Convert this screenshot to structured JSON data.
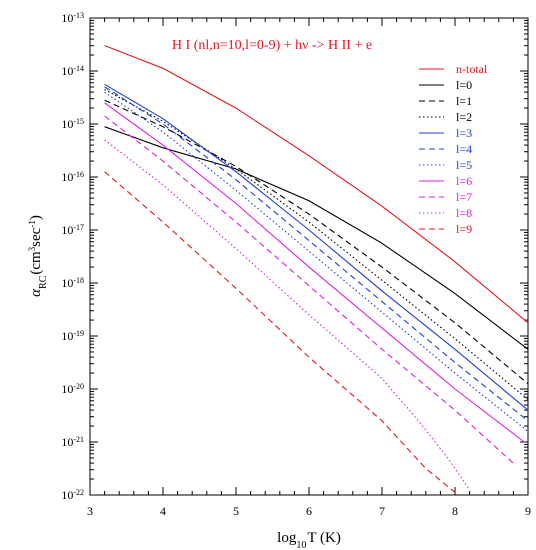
{
  "chart_data": {
    "type": "line",
    "title": "H I (nl,n=10,l=0-9) + hν -> H II + e",
    "title_color": "#e8141c",
    "xlabel": {
      "base": "log",
      "sub": "10",
      "rest": "T (K)"
    },
    "ylabel": {
      "base": "α",
      "sub": "RC",
      "rest1": "(cm",
      "sup1": "3",
      "rest2": "sec",
      "sup2": "-1",
      "rest3": ")"
    },
    "xlim": [
      3,
      9
    ],
    "ylim_log10": [
      -22,
      -13
    ],
    "y_scale": "log",
    "x_ticks": [
      {
        "v": 3,
        "label": "3"
      },
      {
        "v": 4,
        "label": "4"
      },
      {
        "v": 5,
        "label": "5"
      },
      {
        "v": 6,
        "label": "6"
      },
      {
        "v": 7,
        "label": "7"
      },
      {
        "v": 8,
        "label": "8"
      },
      {
        "v": 9,
        "label": "9"
      }
    ],
    "y_ticks": [
      {
        "e": -13,
        "label": "-13"
      },
      {
        "e": -14,
        "label": "-14"
      },
      {
        "e": -15,
        "label": "-15"
      },
      {
        "e": -16,
        "label": "-16"
      },
      {
        "e": -17,
        "label": "-17"
      },
      {
        "e": -18,
        "label": "-18"
      },
      {
        "e": -19,
        "label": "-19"
      },
      {
        "e": -20,
        "label": "-20"
      },
      {
        "e": -21,
        "label": "-21"
      },
      {
        "e": -22,
        "label": "-22"
      }
    ],
    "y_tick_base": "10",
    "legend_position": "top-right",
    "series": [
      {
        "name": "n-total",
        "color": "#e8141c",
        "dash": "solid",
        "points": [
          [
            3.2,
            -13.52
          ],
          [
            4.0,
            -13.95
          ],
          [
            5.0,
            -14.7
          ],
          [
            6.0,
            -15.6
          ],
          [
            7.0,
            -16.55
          ],
          [
            8.0,
            -17.6
          ],
          [
            9.0,
            -18.75
          ]
        ]
      },
      {
        "name": "l=0",
        "color": "#000000",
        "dash": "solid",
        "points": [
          [
            3.2,
            -15.05
          ],
          [
            4.0,
            -15.45
          ],
          [
            5.0,
            -15.85
          ],
          [
            6.0,
            -16.45
          ],
          [
            7.0,
            -17.25
          ],
          [
            8.0,
            -18.2
          ],
          [
            9.0,
            -19.25
          ]
        ]
      },
      {
        "name": "l=1",
        "color": "#000000",
        "dash": "dashed",
        "points": [
          [
            3.2,
            -14.55
          ],
          [
            4.0,
            -15.05
          ],
          [
            5.0,
            -15.8
          ],
          [
            6.0,
            -16.7
          ],
          [
            7.0,
            -17.7
          ],
          [
            8.0,
            -18.75
          ],
          [
            9.0,
            -19.9
          ]
        ]
      },
      {
        "name": "l=2",
        "color": "#000000",
        "dash": "dotted",
        "points": [
          [
            3.2,
            -14.35
          ],
          [
            4.0,
            -14.95
          ],
          [
            5.0,
            -15.85
          ],
          [
            6.0,
            -16.85
          ],
          [
            7.0,
            -17.95
          ],
          [
            8.0,
            -19.05
          ],
          [
            9.0,
            -20.2
          ]
        ]
      },
      {
        "name": "l=3",
        "color": "#1f3cd8",
        "dash": "solid",
        "points": [
          [
            3.2,
            -14.25
          ],
          [
            4.0,
            -14.9
          ],
          [
            5.0,
            -15.9
          ],
          [
            6.0,
            -17.0
          ],
          [
            7.0,
            -18.15
          ],
          [
            8.0,
            -19.25
          ],
          [
            9.0,
            -20.4
          ]
        ]
      },
      {
        "name": "l=4",
        "color": "#1f3cd8",
        "dash": "dashed",
        "points": [
          [
            3.2,
            -14.3
          ],
          [
            4.0,
            -15.0
          ],
          [
            5.0,
            -16.05
          ],
          [
            6.0,
            -17.2
          ],
          [
            7.0,
            -18.35
          ],
          [
            8.0,
            -19.5
          ],
          [
            9.0,
            -20.6
          ]
        ]
      },
      {
        "name": "l=5",
        "color": "#1f3cd8",
        "dash": "dotted",
        "points": [
          [
            3.2,
            -14.4
          ],
          [
            4.0,
            -15.15
          ],
          [
            5.0,
            -16.25
          ],
          [
            6.0,
            -17.4
          ],
          [
            7.0,
            -18.55
          ],
          [
            8.0,
            -19.7
          ],
          [
            9.0,
            -20.8
          ]
        ]
      },
      {
        "name": "l=6",
        "color": "#e01ee0",
        "dash": "solid",
        "points": [
          [
            3.2,
            -14.6
          ],
          [
            4.0,
            -15.4
          ],
          [
            5.0,
            -16.5
          ],
          [
            6.0,
            -17.7
          ],
          [
            7.0,
            -18.85
          ],
          [
            8.0,
            -20.0
          ],
          [
            8.95,
            -21.0
          ]
        ]
      },
      {
        "name": "l=7",
        "color": "#e01ee0",
        "dash": "dashed",
        "points": [
          [
            3.2,
            -14.85
          ],
          [
            4.0,
            -15.7
          ],
          [
            5.0,
            -16.85
          ],
          [
            6.0,
            -18.05
          ],
          [
            7.0,
            -19.25
          ],
          [
            8.0,
            -20.4
          ],
          [
            8.8,
            -21.4
          ]
        ]
      },
      {
        "name": "l=8",
        "color": "#e01ee0",
        "dash": "dotted",
        "points": [
          [
            3.2,
            -15.3
          ],
          [
            4.0,
            -16.15
          ],
          [
            5.0,
            -17.35
          ],
          [
            6.0,
            -18.6
          ],
          [
            7.0,
            -19.8
          ],
          [
            7.5,
            -20.6
          ],
          [
            7.9,
            -21.3
          ],
          [
            8.2,
            -21.9
          ]
        ]
      },
      {
        "name": "l=9",
        "color": "#e8141c",
        "dash": "dashed",
        "points": [
          [
            3.2,
            -15.9
          ],
          [
            4.0,
            -16.85
          ],
          [
            5.0,
            -18.1
          ],
          [
            6.0,
            -19.4
          ],
          [
            7.0,
            -20.6
          ],
          [
            7.6,
            -21.5
          ],
          [
            8.0,
            -21.95
          ]
        ]
      }
    ]
  }
}
